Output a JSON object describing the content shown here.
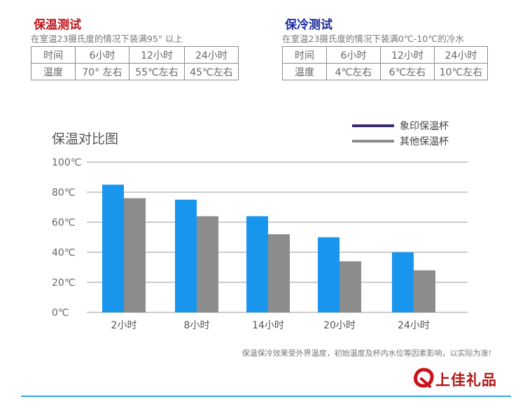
{
  "hot_test": {
    "title": "保温测试",
    "title_color": "#c0141b",
    "subtitle": "在室温23摄氏度的情况下装满95° 以上",
    "rows": [
      [
        "时间",
        "6小时",
        "12小时",
        "24小时"
      ],
      [
        "温度",
        "70° 左右",
        "55℃左右",
        "45℃左右"
      ]
    ]
  },
  "cold_test": {
    "title": "保冷测试",
    "title_color": "#1c2a9b",
    "subtitle": "在室温23摄氏度的情况下装满0℃-10℃的冷水",
    "rows": [
      [
        "时间",
        "6小时",
        "12小时",
        "24小时"
      ],
      [
        "温度",
        "4℃左右",
        "6℃左右",
        "10℃左右"
      ]
    ]
  },
  "chart_data": {
    "type": "bar",
    "title": "保温对比图",
    "categories": [
      "2小时",
      "8小时",
      "14小时",
      "20小时",
      "24小时"
    ],
    "series": [
      {
        "name": "象印保温杯",
        "values": [
          85,
          75,
          64,
          50,
          40
        ],
        "color": "#1896ee",
        "legend_color": "#3a2a6e"
      },
      {
        "name": "其他保温杯",
        "values": [
          76,
          64,
          52,
          34,
          28
        ],
        "color": "#8c8c8c",
        "legend_color": "#8c8c8c"
      }
    ],
    "yticks": [
      "0℃",
      "20℃",
      "40℃",
      "60℃",
      "80℃",
      "100℃"
    ],
    "ylim": [
      0,
      100
    ],
    "grid": true,
    "legend_position": "top-right"
  },
  "footnote": "保温保冷效果受外界温度，初始温度及杯内水位等因素影响，以实际为准!",
  "logo": {
    "text": "上佳礼品",
    "color": "#b01515"
  }
}
